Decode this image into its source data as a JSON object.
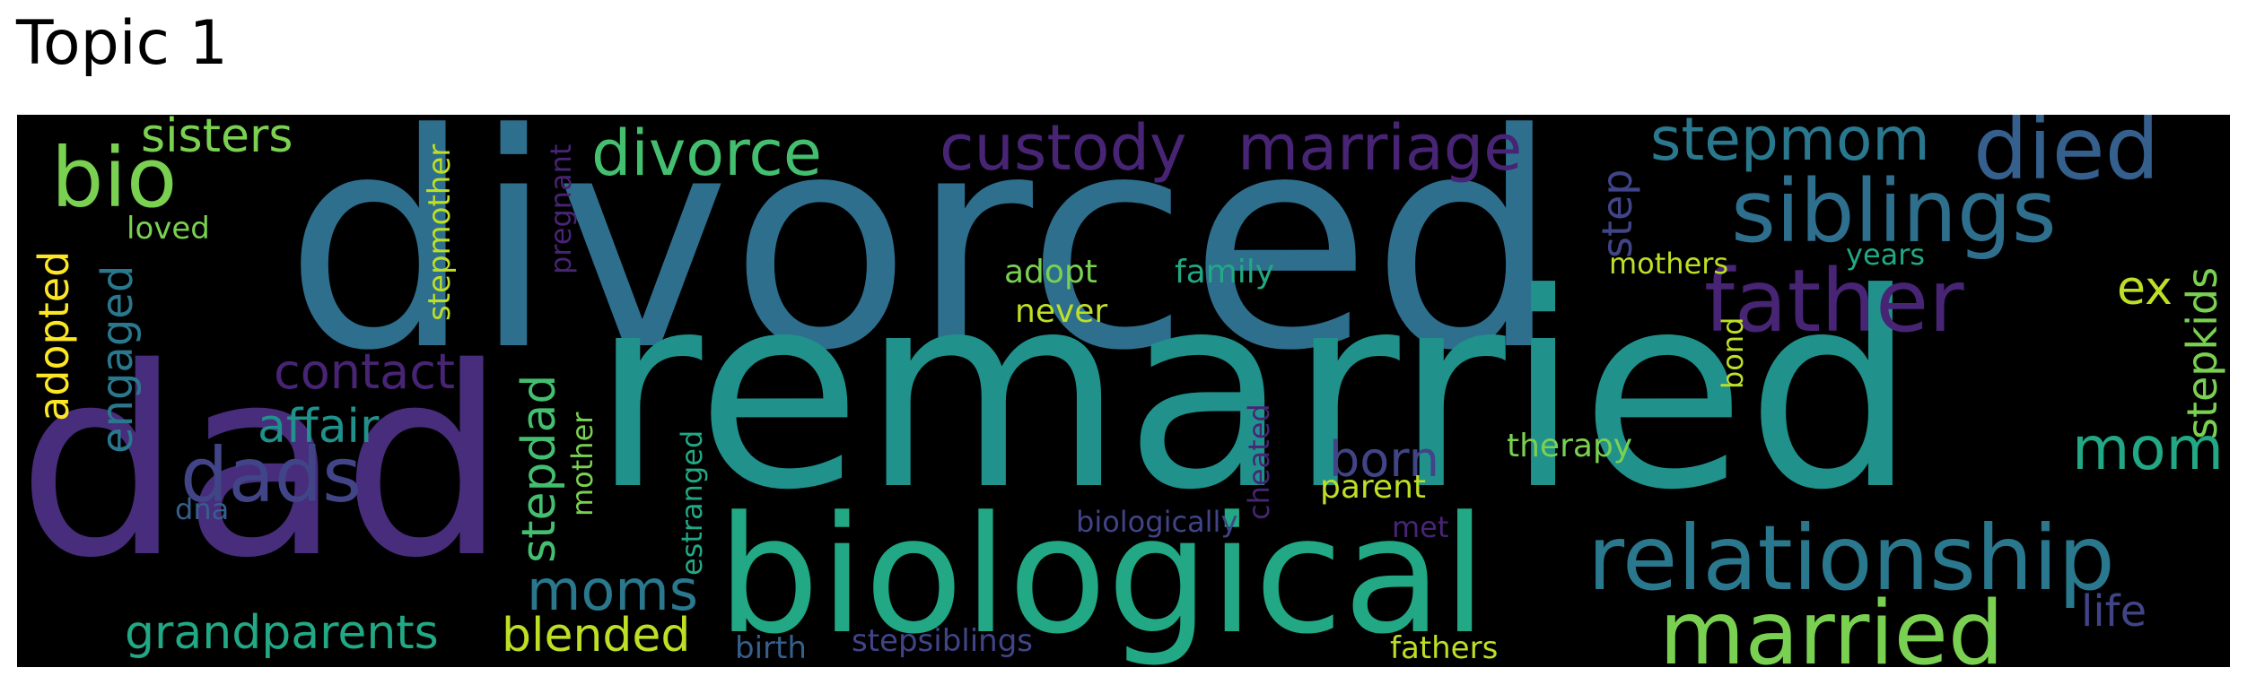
{
  "title": "Topic 1",
  "colors": {
    "background": "#000000",
    "palette": [
      "#440154",
      "#482475",
      "#414487",
      "#355f8d",
      "#2a788e",
      "#21918c",
      "#22a884",
      "#44bf70",
      "#7ad151",
      "#bddf26",
      "#fde725"
    ]
  },
  "words": {
    "divorced": "divorced",
    "remarried": "remarried",
    "dad": "dad",
    "biological": "biological",
    "relationship": "relationship",
    "married": "married",
    "siblings": "siblings",
    "father": "father",
    "died": "died",
    "dads": "dads",
    "bio": "bio",
    "custody": "custody",
    "marriage": "marriage",
    "divorce": "divorce",
    "stepmom": "stepmom",
    "mom": "mom",
    "sisters": "sisters",
    "moms": "moms",
    "grandparents": "grandparents",
    "stepdad": "stepdad",
    "contact": "contact",
    "affair": "affair",
    "born": "born",
    "blended": "blended",
    "engaged": "engaged",
    "adopted": "adopted",
    "step": "step",
    "stepkids": "stepkids",
    "ex": "ex",
    "life": "life",
    "loved": "loved",
    "stepmother": "stepmother",
    "pregnant": "pregnant",
    "adopt": "adopt",
    "family": "family",
    "never": "never",
    "mothers": "mothers",
    "years": "years",
    "bond": "bond",
    "therapy": "therapy",
    "parent": "parent",
    "cheated": "cheated",
    "mother": "mother",
    "estranged": "estranged",
    "dna": "dna",
    "biologically": "biologically",
    "met": "met",
    "birth": "birth",
    "stepsiblings": "stepsiblings",
    "fathers": "fathers"
  }
}
